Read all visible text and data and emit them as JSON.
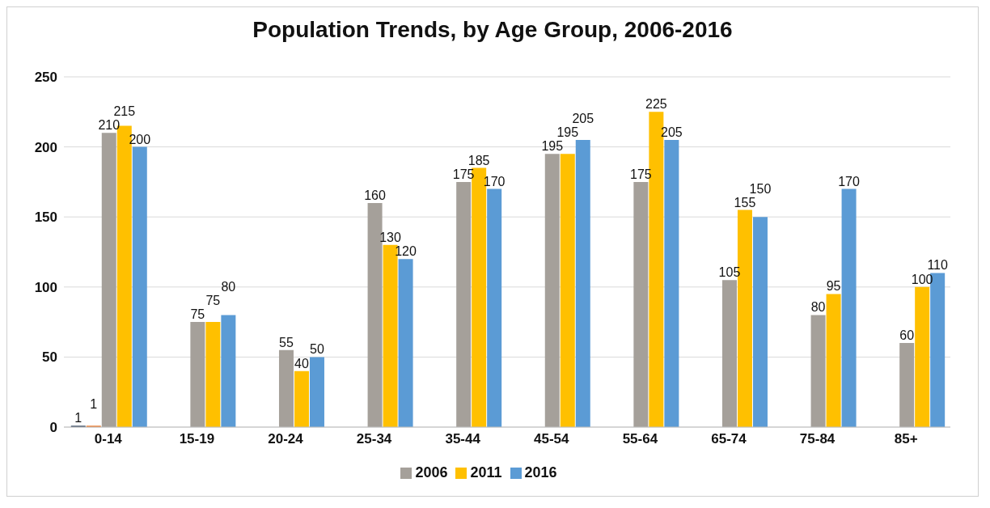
{
  "chart_data": {
    "type": "bar",
    "title": "Population Trends, by Age Group, 2006-2016",
    "categories": [
      "0-14",
      "15-19",
      "20-24",
      "25-34",
      "35-44",
      "45-54",
      "55-64",
      "65-74",
      "75-84",
      "85+"
    ],
    "series": [
      {
        "color": "#44546a",
        "values": [
          1,
          null,
          null,
          null,
          null,
          null,
          null,
          null,
          null,
          null
        ]
      },
      {
        "color": "#ed7d31",
        "values": [
          1,
          null,
          null,
          null,
          null,
          null,
          null,
          null,
          null,
          null
        ]
      },
      {
        "name": "2006",
        "color": "#a5a09a",
        "values": [
          210,
          75,
          55,
          160,
          175,
          195,
          175,
          105,
          80,
          60
        ]
      },
      {
        "name": "2011",
        "color": "#ffc000",
        "values": [
          215,
          75,
          40,
          130,
          185,
          195,
          225,
          155,
          95,
          100
        ]
      },
      {
        "name": "2016",
        "color": "#5b9bd5",
        "values": [
          200,
          80,
          50,
          120,
          170,
          205,
          205,
          150,
          170,
          110
        ]
      }
    ],
    "ylim": [
      0,
      250
    ],
    "yticks": [
      0,
      50,
      100,
      150,
      200,
      250
    ],
    "grid": "y",
    "legend": "bottom",
    "data_labels": true
  }
}
